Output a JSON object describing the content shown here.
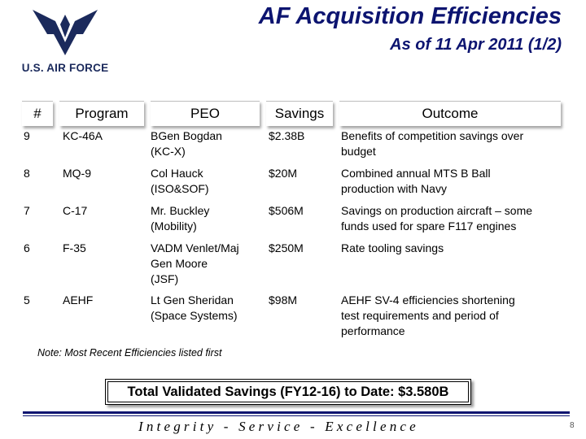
{
  "logo": {
    "text": "U.S. AIR FORCE"
  },
  "header": {
    "title": "AF Acquisition Efficiencies",
    "subtitle": "As of 11 Apr 2011 (1/2)"
  },
  "table": {
    "columns": [
      "#",
      "Program",
      "PEO",
      "Savings",
      "Outcome"
    ],
    "rows": [
      {
        "num": "9",
        "program": "KC-46A",
        "peo": [
          "BGen Bogdan",
          "(KC-X)"
        ],
        "savings": "$2.38B",
        "outcome": [
          "Benefits of competition savings over",
          "budget"
        ]
      },
      {
        "num": "8",
        "program": "MQ-9",
        "peo": [
          "Col Hauck",
          "(ISO&SOF)"
        ],
        "savings": "$20M",
        "outcome": [
          "Combined annual MTS B Ball",
          "production with Navy"
        ]
      },
      {
        "num": "7",
        "program": "C-17",
        "peo": [
          "Mr. Buckley",
          "(Mobility)"
        ],
        "savings": "$506M",
        "outcome": [
          "Savings on production aircraft – some",
          "funds used for spare F117 engines"
        ]
      },
      {
        "num": "6",
        "program": "F-35",
        "peo": [
          "VADM Venlet/Maj",
          "Gen Moore",
          "(JSF)"
        ],
        "savings": "$250M",
        "outcome": [
          "Rate tooling savings"
        ]
      },
      {
        "num": "5",
        "program": "AEHF",
        "peo": [
          "Lt Gen Sheridan",
          "(Space Systems)"
        ],
        "savings": "$98M",
        "outcome": [
          "AEHF SV-4 efficiencies shortening",
          "test requirements and period of",
          "performance"
        ]
      }
    ]
  },
  "note": "Note:  Most Recent Efficiencies listed first",
  "total": "Total Validated Savings (FY12-16) to Date: $3.580B",
  "footer": {
    "motto": "Integrity - Service - Excellence",
    "page": "8"
  },
  "colors": {
    "title": "#0c1470",
    "logo": "#1b2a5c"
  }
}
